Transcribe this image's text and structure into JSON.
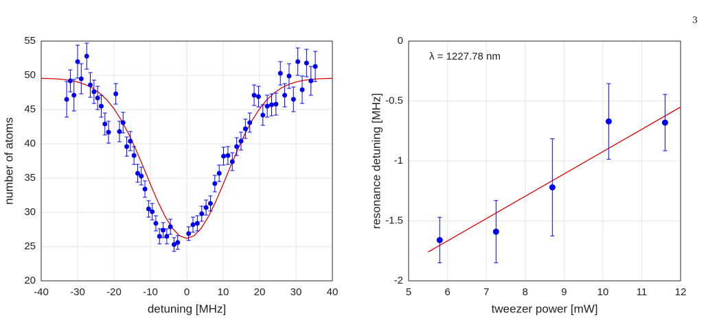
{
  "page_number": 3,
  "chart_data": [
    {
      "type": "scatter",
      "xlabel": "detuning [MHz]",
      "ylabel": "number of atoms",
      "xlim": [
        -40,
        40
      ],
      "xticks": [
        -40,
        -30,
        -20,
        -10,
        0,
        10,
        20,
        30,
        40
      ],
      "ylim": [
        20,
        55
      ],
      "yticks": [
        20,
        25,
        30,
        35,
        40,
        45,
        50,
        55
      ],
      "grid": true,
      "color": "#0000ee",
      "x": [
        -33,
        -32,
        -31,
        -30,
        -29,
        -27.5,
        -26.5,
        -25.5,
        -24.5,
        -23.5,
        -22.5,
        -21.5,
        -19.5,
        -18.5,
        -17.5,
        -16.5,
        -15.5,
        -14.5,
        -13.5,
        -12.5,
        -11.5,
        -10.5,
        -9.5,
        -8.5,
        -7.5,
        -6.5,
        -5.5,
        -4.5,
        -3.5,
        -2.5,
        0.5,
        1.7,
        2.9,
        4.1,
        5.3,
        6.5,
        7.7,
        8.9,
        10.1,
        11.3,
        12.5,
        13.7,
        14.9,
        16.1,
        17.3,
        18.5,
        19.7,
        20.9,
        22.1,
        23.3,
        24.5,
        25.7,
        26.9,
        28.1,
        29.3,
        30.5,
        31.7,
        32.9,
        34.1,
        35.3
      ],
      "values": [
        46.5,
        49.2,
        47.1,
        52.0,
        49.5,
        52.8,
        48.6,
        47.6,
        46.7,
        45.5,
        42.9,
        41.7,
        47.3,
        41.8,
        43.1,
        39.6,
        40.4,
        38.3,
        35.7,
        35.3,
        33.4,
        30.5,
        30.1,
        28.4,
        26.5,
        27.4,
        26.5,
        27.9,
        25.3,
        25.6,
        26.9,
        28.2,
        28.4,
        29.8,
        30.7,
        31.3,
        34.2,
        35.7,
        38.2,
        38.3,
        37.4,
        39.6,
        40.4,
        42.2,
        43.1,
        47.1,
        46.9,
        44.2,
        45.5,
        45.7,
        45.8,
        50.3,
        47.1,
        49.9,
        46.5,
        52.0,
        47.9,
        51.8,
        49.2,
        51.3
      ],
      "errors": [
        2.6,
        1.6,
        2.3,
        2.4,
        2.2,
        1.9,
        1.8,
        1.7,
        1.7,
        1.6,
        1.6,
        1.6,
        1.5,
        1.5,
        1.5,
        1.4,
        1.4,
        1.3,
        1.3,
        1.3,
        1.2,
        1.2,
        1.2,
        1.1,
        1.1,
        1.1,
        1.1,
        1.1,
        1.0,
        1.0,
        1.0,
        1.1,
        1.1,
        1.1,
        1.1,
        1.1,
        1.2,
        1.2,
        1.3,
        1.3,
        1.3,
        1.3,
        1.3,
        1.4,
        1.4,
        1.5,
        1.5,
        1.5,
        1.6,
        1.6,
        1.6,
        1.7,
        1.7,
        1.8,
        1.8,
        2.0,
        2.0,
        2.0,
        2.1,
        2.2
      ],
      "fit": {
        "color": "#e00000",
        "x": [
          -40,
          -38,
          -36,
          -34,
          -32,
          -30,
          -28,
          -26,
          -24,
          -22,
          -20,
          -18,
          -16,
          -14,
          -12,
          -10,
          -8,
          -6,
          -4,
          -2,
          0,
          2,
          4,
          6,
          8,
          10,
          12,
          14,
          16,
          18,
          20,
          22,
          24,
          26,
          28,
          30,
          32,
          34,
          36,
          38,
          40
        ],
        "values": [
          49.57,
          49.54,
          49.49,
          49.4,
          49.26,
          49.03,
          48.68,
          48.17,
          47.43,
          46.44,
          45.12,
          43.47,
          41.48,
          39.19,
          36.69,
          34.11,
          31.63,
          29.43,
          27.7,
          26.58,
          26.2,
          26.58,
          27.7,
          29.43,
          31.63,
          34.11,
          36.69,
          39.19,
          41.48,
          43.47,
          45.12,
          46.44,
          47.43,
          48.17,
          48.68,
          49.03,
          49.26,
          49.4,
          49.49,
          49.54,
          49.57
        ]
      }
    },
    {
      "type": "scatter",
      "xlabel": "tweezer power [mW]",
      "ylabel": "resonance detuning [MHz]",
      "annotation": "λ = 1227.78 nm",
      "xlim": [
        5,
        12
      ],
      "xticks": [
        5,
        6,
        7,
        8,
        9,
        10,
        11,
        12
      ],
      "ylim": [
        -2,
        0
      ],
      "yticks": [
        -2,
        -1.5,
        -1,
        -0.5,
        0
      ],
      "grid": true,
      "color": "#0000ee",
      "x": [
        5.8,
        7.25,
        8.7,
        10.15,
        11.6
      ],
      "values": [
        -1.66,
        -1.59,
        -1.22,
        -0.67,
        -0.68
      ],
      "errors": [
        0.19,
        0.26,
        0.405,
        0.315,
        0.235
      ],
      "fit": {
        "color": "#e00000",
        "x": [
          5.5,
          12
        ],
        "values": [
          -1.76,
          -0.55
        ]
      }
    }
  ]
}
